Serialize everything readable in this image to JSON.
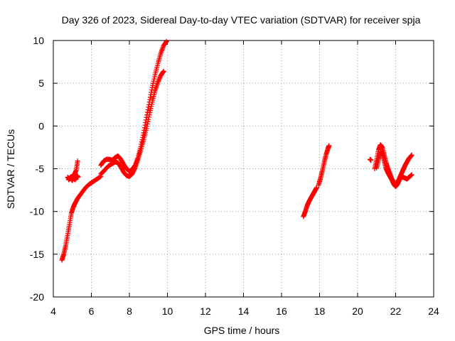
{
  "chart_data": {
    "type": "scatter",
    "title": "Day 326 of 2023, Sidereal Day-to-day VTEC variation (SDTVAR) for receiver spja",
    "xlabel": "GPS time / hours",
    "ylabel": "SDTVAR / TECUs",
    "xlim": [
      4,
      24
    ],
    "ylim": [
      -20,
      10
    ],
    "xticks": [
      4,
      6,
      8,
      10,
      12,
      14,
      16,
      18,
      20,
      22,
      24
    ],
    "yticks": [
      -20,
      -15,
      -10,
      -5,
      0,
      5,
      10
    ],
    "grid": true,
    "marker": "+",
    "color": "#ff0000",
    "series": [
      {
        "name": "sdtvar_main_rise",
        "x": [
          4.45,
          4.55,
          4.65,
          4.75,
          4.85,
          4.95,
          5.05,
          5.15,
          5.3,
          5.5,
          5.7,
          5.9,
          6.1,
          6.3,
          6.5
        ],
        "y": [
          -15.7,
          -15.0,
          -14.0,
          -12.8,
          -11.5,
          -10.2,
          -9.5,
          -9.0,
          -8.4,
          -7.8,
          -7.2,
          -6.8,
          -6.5,
          -6.2,
          -5.9
        ]
      },
      {
        "name": "sdtvar_early_block_a",
        "x": [
          4.75,
          4.85,
          4.95,
          5.05,
          5.15,
          5.25,
          5.3
        ],
        "y": [
          -6.0,
          -6.2,
          -5.9,
          -6.1,
          -6.3,
          -5.8,
          -6.0
        ]
      },
      {
        "name": "sdtvar_early_block_b",
        "x": [
          4.8,
          4.9,
          5.0,
          5.1,
          5.2,
          5.28
        ],
        "y": [
          -6.3,
          -6.0,
          -6.4,
          -5.7,
          -5.2,
          -4.1
        ]
      },
      {
        "name": "sdtvar_oscillation_upper",
        "x": [
          6.5,
          6.65,
          6.8,
          6.95,
          7.1,
          7.25,
          7.4,
          7.55,
          7.7,
          7.85,
          8.0,
          8.15,
          8.3,
          8.45,
          8.6,
          8.75,
          8.9,
          9.05,
          9.2,
          9.35,
          9.5,
          9.65,
          9.8,
          9.95
        ],
        "y": [
          -4.6,
          -4.1,
          -3.9,
          -3.9,
          -4.0,
          -3.7,
          -3.5,
          -3.9,
          -4.5,
          -5.0,
          -5.3,
          -5.1,
          -4.6,
          -3.7,
          -2.4,
          -0.8,
          1.0,
          2.8,
          4.5,
          6.0,
          7.3,
          8.5,
          9.4,
          9.9
        ]
      },
      {
        "name": "sdtvar_oscillation_lower",
        "x": [
          6.5,
          6.65,
          6.8,
          6.95,
          7.1,
          7.25,
          7.4,
          7.55,
          7.7,
          7.85,
          8.0,
          8.15,
          8.3,
          8.45,
          8.6,
          8.75,
          8.9,
          9.05,
          9.2,
          9.35,
          9.5,
          9.65,
          9.8
        ],
        "y": [
          -5.6,
          -5.3,
          -4.9,
          -4.6,
          -4.4,
          -4.2,
          -4.3,
          -4.8,
          -5.4,
          -5.8,
          -5.9,
          -5.6,
          -4.9,
          -3.9,
          -2.8,
          -1.6,
          -0.3,
          1.3,
          2.8,
          4.1,
          5.1,
          5.9,
          6.4
        ]
      },
      {
        "name": "sdtvar_evening_segment_a",
        "x": [
          17.15,
          17.25,
          17.35,
          17.45,
          17.55,
          17.65,
          17.75,
          17.85
        ],
        "y": [
          -10.6,
          -10.0,
          -9.3,
          -8.8,
          -8.4,
          -8.0,
          -7.6,
          -7.2
        ]
      },
      {
        "name": "sdtvar_evening_segment_b",
        "x": [
          17.95,
          18.05,
          18.15,
          18.25,
          18.35,
          18.45,
          18.5
        ],
        "y": [
          -6.9,
          -6.1,
          -5.2,
          -4.2,
          -3.3,
          -2.6,
          -2.3
        ]
      },
      {
        "name": "sdtvar_late_isolated",
        "x": [
          20.65,
          20.7
        ],
        "y": [
          -3.9,
          -4.0
        ]
      },
      {
        "name": "sdtvar_late_peak_a",
        "x": [
          20.9,
          21.0,
          21.1,
          21.2,
          21.3,
          21.4,
          21.5,
          21.6,
          21.7,
          21.8,
          21.9,
          22.0,
          22.1,
          22.2,
          22.3,
          22.4,
          22.5,
          22.6,
          22.7,
          22.85
        ],
        "y": [
          -5.0,
          -4.0,
          -2.8,
          -2.2,
          -2.5,
          -3.4,
          -4.3,
          -5.0,
          -5.6,
          -6.2,
          -6.6,
          -6.9,
          -6.6,
          -6.1,
          -5.6,
          -5.1,
          -4.6,
          -4.2,
          -3.8,
          -3.4
        ]
      },
      {
        "name": "sdtvar_late_peak_b",
        "x": [
          21.0,
          21.1,
          21.2,
          21.3,
          21.4,
          21.5,
          21.6,
          21.7,
          21.8,
          21.9,
          22.0,
          22.1,
          22.2,
          22.3,
          22.4,
          22.5,
          22.6,
          22.7,
          22.85
        ],
        "y": [
          -4.9,
          -3.9,
          -3.1,
          -3.2,
          -4.1,
          -5.0,
          -5.5,
          -5.9,
          -6.3,
          -6.8,
          -7.1,
          -6.8,
          -6.3,
          -6.0,
          -6.0,
          -6.1,
          -6.2,
          -6.0,
          -5.7
        ]
      }
    ]
  }
}
